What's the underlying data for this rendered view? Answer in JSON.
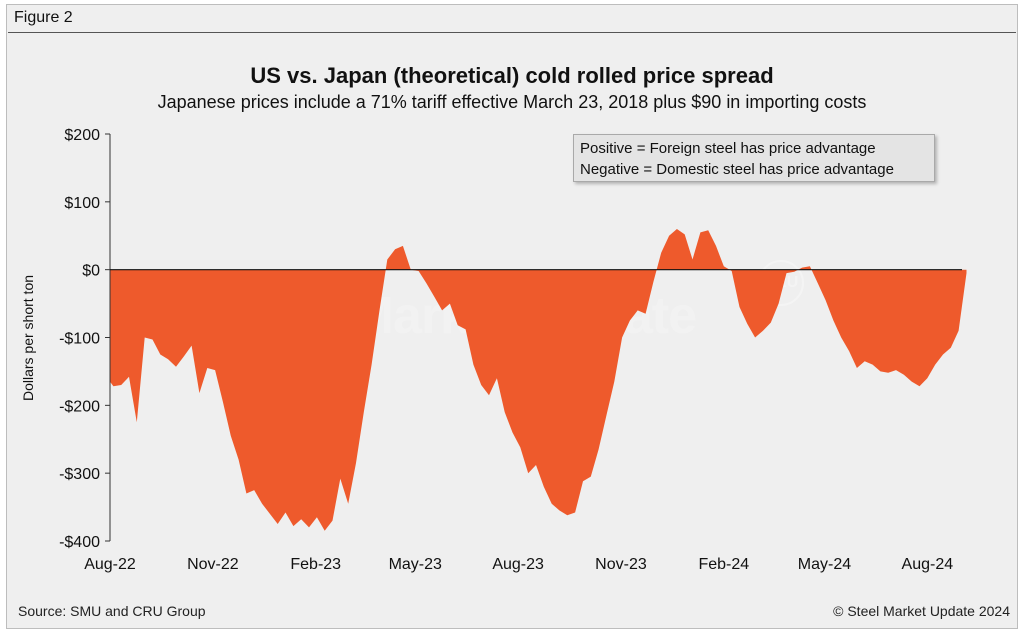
{
  "figure_label": "Figure 2",
  "source": "Source: SMU and CRU Group",
  "copyright": "© Steel Market Update 2024",
  "watermark": {
    "text": "Steel Market Update",
    "logo": "CRU"
  },
  "legend": {
    "line1": "Positive = Foreign steel has price advantage",
    "line2": "Negative = Domestic steel has price advantage"
  },
  "colors": {
    "fill": "#ee5a2c",
    "background": "#efefef",
    "zero_line": "#111111"
  },
  "chart_data": {
    "type": "area",
    "title": "US vs. Japan (theoretical) cold rolled price spread",
    "subtitle": "Japanese prices include a 71% tariff effective March 23, 2018 plus $90 in importing costs",
    "ylabel": "Dollars per short ton",
    "ylim": [
      -400,
      200
    ],
    "yticks": [
      200,
      100,
      0,
      -100,
      -200,
      -300,
      -400
    ],
    "ytick_labels": [
      "$200",
      "$100",
      "$0",
      "-$100",
      "-$200",
      "-$300",
      "-$400"
    ],
    "xlim": [
      "2022-08-01",
      "2024-09-01"
    ],
    "xticks": [
      "2022-08-01",
      "2022-11-01",
      "2023-02-01",
      "2023-05-01",
      "2023-08-01",
      "2023-11-01",
      "2024-02-01",
      "2024-05-01",
      "2024-08-01"
    ],
    "xtick_labels": [
      "Aug-22",
      "Nov-22",
      "Feb-23",
      "May-23",
      "Aug-23",
      "Nov-23",
      "Feb-24",
      "May-24",
      "Aug-24"
    ],
    "grid": false,
    "legend_position": "top-right",
    "series": [
      {
        "x": [
          "2022-08-01",
          "2022-08-04",
          "2022-08-11",
          "2022-08-18",
          "2022-08-25",
          "2022-09-01",
          "2022-09-08",
          "2022-09-15",
          "2022-09-22",
          "2022-09-29",
          "2022-10-06",
          "2022-10-13",
          "2022-10-20",
          "2022-10-27",
          "2022-11-03",
          "2022-11-10",
          "2022-11-17",
          "2022-11-24",
          "2022-12-01",
          "2022-12-08",
          "2022-12-15",
          "2022-12-22",
          "2022-12-29",
          "2023-01-05",
          "2023-01-12",
          "2023-01-19",
          "2023-01-26",
          "2023-02-02",
          "2023-02-09",
          "2023-02-16",
          "2023-02-23",
          "2023-03-02",
          "2023-03-09",
          "2023-03-16",
          "2023-03-23",
          "2023-03-30",
          "2023-04-06",
          "2023-04-13",
          "2023-04-20",
          "2023-04-27",
          "2023-05-04",
          "2023-05-11",
          "2023-05-18",
          "2023-05-25",
          "2023-06-01",
          "2023-06-08",
          "2023-06-15",
          "2023-06-22",
          "2023-06-29",
          "2023-07-06",
          "2023-07-13",
          "2023-07-20",
          "2023-07-27",
          "2023-08-03",
          "2023-08-10",
          "2023-08-17",
          "2023-08-24",
          "2023-08-31",
          "2023-09-07",
          "2023-09-14",
          "2023-09-21",
          "2023-09-28",
          "2023-10-05",
          "2023-10-12",
          "2023-10-19",
          "2023-10-26",
          "2023-11-02",
          "2023-11-09",
          "2023-11-16",
          "2023-11-23",
          "2023-11-30",
          "2023-12-07",
          "2023-12-14",
          "2023-12-21",
          "2023-12-28",
          "2024-01-04",
          "2024-01-11",
          "2024-01-18",
          "2024-01-25",
          "2024-02-01",
          "2024-02-08",
          "2024-02-15",
          "2024-02-22",
          "2024-02-29",
          "2024-03-07",
          "2024-03-14",
          "2024-03-21",
          "2024-03-28",
          "2024-04-04",
          "2024-04-11",
          "2024-04-18",
          "2024-04-25",
          "2024-05-02",
          "2024-05-09",
          "2024-05-16",
          "2024-05-23",
          "2024-05-30",
          "2024-06-06",
          "2024-06-13",
          "2024-06-20",
          "2024-06-27",
          "2024-07-04",
          "2024-07-11",
          "2024-07-18",
          "2024-07-25",
          "2024-08-01",
          "2024-08-08",
          "2024-08-15",
          "2024-08-22",
          "2024-08-29",
          "2024-09-05"
        ],
        "values": [
          -165,
          -172,
          -170,
          -158,
          -225,
          -100,
          -103,
          -125,
          -132,
          -143,
          -128,
          -112,
          -182,
          -145,
          -148,
          -195,
          -245,
          -280,
          -330,
          -325,
          -345,
          -360,
          -375,
          -358,
          -378,
          -368,
          -380,
          -365,
          -385,
          -370,
          -308,
          -345,
          -285,
          -210,
          -140,
          -60,
          15,
          30,
          35,
          0,
          -2,
          -20,
          -40,
          -60,
          -50,
          -82,
          -88,
          -140,
          -170,
          -185,
          -160,
          -210,
          -240,
          -262,
          -300,
          -288,
          -320,
          -345,
          -355,
          -362,
          -358,
          -312,
          -305,
          -265,
          -215,
          -165,
          -100,
          -75,
          -60,
          -65,
          -18,
          25,
          50,
          60,
          52,
          15,
          55,
          58,
          35,
          5,
          -2,
          -55,
          -80,
          -100,
          -90,
          -78,
          -50,
          -5,
          -3,
          3,
          5,
          -20,
          -45,
          -75,
          -100,
          -120,
          -145,
          -135,
          -140,
          -150,
          -152,
          -148,
          -155,
          -165,
          -172,
          -160,
          -140,
          -125,
          -115,
          -90,
          -5
        ]
      }
    ]
  }
}
